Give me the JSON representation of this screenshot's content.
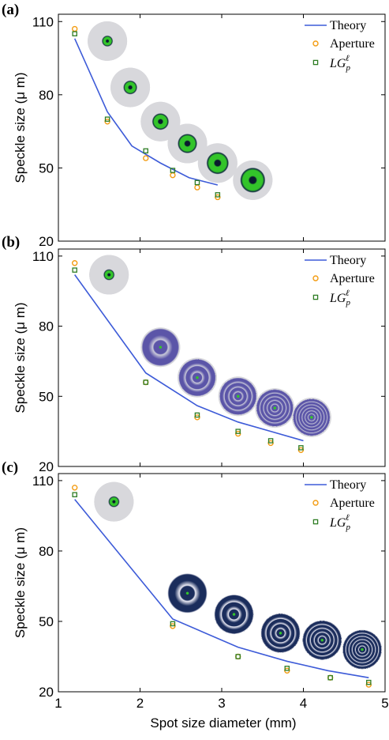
{
  "chart_data": [
    {
      "panel_label": "(a)",
      "type": "line+scatter",
      "ylabel": "Speckle size (μ m)",
      "xlim": [
        1,
        5
      ],
      "ylim": [
        20,
        113
      ],
      "yticks": [
        20,
        50,
        80,
        110
      ],
      "legend": {
        "position": "top-right",
        "entries": [
          "Theory",
          "Aperture",
          "LG_p^ℓ"
        ]
      },
      "series": [
        {
          "name": "Theory",
          "kind": "line",
          "color": "#3d5bd8",
          "x": [
            1.2,
            1.6,
            1.9,
            2.25,
            2.6,
            2.95
          ],
          "y": [
            103,
            73,
            59,
            52,
            46,
            43
          ]
        },
        {
          "name": "Aperture",
          "kind": "circle-marker",
          "color": "#f39c12",
          "x": [
            1.2,
            1.6,
            2.07,
            2.4,
            2.7,
            2.95
          ],
          "y": [
            107,
            69,
            54,
            47,
            42,
            38
          ]
        },
        {
          "name": "LG_p^ℓ",
          "kind": "square-marker",
          "color": "#2e7d23",
          "x": [
            1.2,
            1.6,
            2.07,
            2.4,
            2.7,
            2.95
          ],
          "y": [
            105,
            70,
            57,
            49,
            44,
            39
          ]
        }
      ],
      "insets": [
        {
          "x": 1.6,
          "y": 102,
          "rings": 0,
          "style": "green"
        },
        {
          "x": 1.88,
          "y": 83,
          "rings": 0,
          "style": "green"
        },
        {
          "x": 2.25,
          "y": 69,
          "rings": 0,
          "style": "green"
        },
        {
          "x": 2.58,
          "y": 60,
          "rings": 0,
          "style": "green"
        },
        {
          "x": 2.95,
          "y": 52,
          "rings": 0,
          "style": "green"
        },
        {
          "x": 3.38,
          "y": 45,
          "rings": 0,
          "style": "green"
        }
      ]
    },
    {
      "panel_label": "(b)",
      "type": "line+scatter",
      "ylabel": "Speckle size (μ m)",
      "xlim": [
        1,
        5
      ],
      "ylim": [
        20,
        113
      ],
      "yticks": [
        20,
        50,
        80,
        110
      ],
      "legend": {
        "position": "top-right",
        "entries": [
          "Theory",
          "Aperture",
          "LG_p^ℓ"
        ]
      },
      "series": [
        {
          "name": "Theory",
          "kind": "line",
          "color": "#3d5bd8",
          "x": [
            1.2,
            2.07,
            2.7,
            3.2,
            3.6,
            4.0
          ],
          "y": [
            102,
            60,
            46,
            39,
            35,
            31
          ]
        },
        {
          "name": "Aperture",
          "kind": "circle-marker",
          "color": "#f39c12",
          "x": [
            1.2,
            2.07,
            2.7,
            3.2,
            3.6,
            3.97
          ],
          "y": [
            107,
            56,
            41,
            34,
            30,
            27
          ]
        },
        {
          "name": "LG_p^ℓ",
          "kind": "square-marker",
          "color": "#2e7d23",
          "x": [
            1.2,
            2.07,
            2.7,
            3.2,
            3.6,
            3.97
          ],
          "y": [
            104,
            56,
            42,
            35,
            31,
            28
          ]
        }
      ],
      "insets": [
        {
          "x": 1.62,
          "y": 102,
          "rings": 0,
          "style": "green"
        },
        {
          "x": 2.25,
          "y": 71,
          "rings": 1,
          "style": "purple"
        },
        {
          "x": 2.7,
          "y": 58,
          "rings": 2,
          "style": "purple"
        },
        {
          "x": 3.2,
          "y": 50,
          "rings": 3,
          "style": "purple"
        },
        {
          "x": 3.65,
          "y": 45,
          "rings": 4,
          "style": "purple"
        },
        {
          "x": 4.1,
          "y": 41,
          "rings": 5,
          "style": "purple"
        }
      ]
    },
    {
      "panel_label": "(c)",
      "type": "line+scatter",
      "ylabel": "Speckle size (μ m)",
      "xlabel": "Spot size diameter (mm)",
      "xlim": [
        1,
        5
      ],
      "xticks": [
        1,
        2,
        3,
        4,
        5
      ],
      "ylim": [
        20,
        113
      ],
      "yticks": [
        20,
        50,
        80,
        110
      ],
      "legend": {
        "position": "top-right",
        "entries": [
          "Theory",
          "Aperture",
          "LG_p^ℓ"
        ]
      },
      "series": [
        {
          "name": "Theory",
          "kind": "line",
          "color": "#3d5bd8",
          "x": [
            1.2,
            2.4,
            3.2,
            3.8,
            4.3,
            4.8
          ],
          "y": [
            102,
            51,
            39,
            33,
            29,
            26
          ]
        },
        {
          "name": "Aperture",
          "kind": "circle-marker",
          "color": "#f39c12",
          "x": [
            1.2,
            2.4,
            3.2,
            3.8,
            4.33,
            4.8
          ],
          "y": [
            107,
            48,
            35,
            29,
            26,
            23
          ]
        },
        {
          "name": "LG_p^ℓ",
          "kind": "square-marker",
          "color": "#2e7d23",
          "x": [
            1.2,
            2.4,
            3.2,
            3.8,
            4.33,
            4.8
          ],
          "y": [
            104,
            49,
            35,
            30,
            26,
            24
          ]
        }
      ],
      "insets": [
        {
          "x": 1.68,
          "y": 101,
          "rings": 0,
          "style": "green"
        },
        {
          "x": 2.58,
          "y": 62,
          "rings": 1,
          "style": "navy"
        },
        {
          "x": 3.15,
          "y": 53,
          "rings": 2,
          "style": "navy"
        },
        {
          "x": 3.72,
          "y": 45,
          "rings": 3,
          "style": "navy"
        },
        {
          "x": 4.23,
          "y": 42,
          "rings": 4,
          "style": "navy"
        },
        {
          "x": 4.72,
          "y": 38,
          "rings": 5,
          "style": "navy"
        }
      ]
    }
  ],
  "legend_labels": {
    "theory": "Theory",
    "aperture": "Aperture",
    "lg_base": "LG",
    "lg_sub": "p",
    "lg_sup": "ℓ"
  },
  "colors": {
    "theory": "#3d5bd8",
    "aperture": "#f39c12",
    "lg": "#2e7d23",
    "green_core": "#33c42a",
    "navy_ring": "#1b2d5c",
    "purple_ring": "#5b55a8",
    "inset_bg": "#d8d8dc"
  }
}
